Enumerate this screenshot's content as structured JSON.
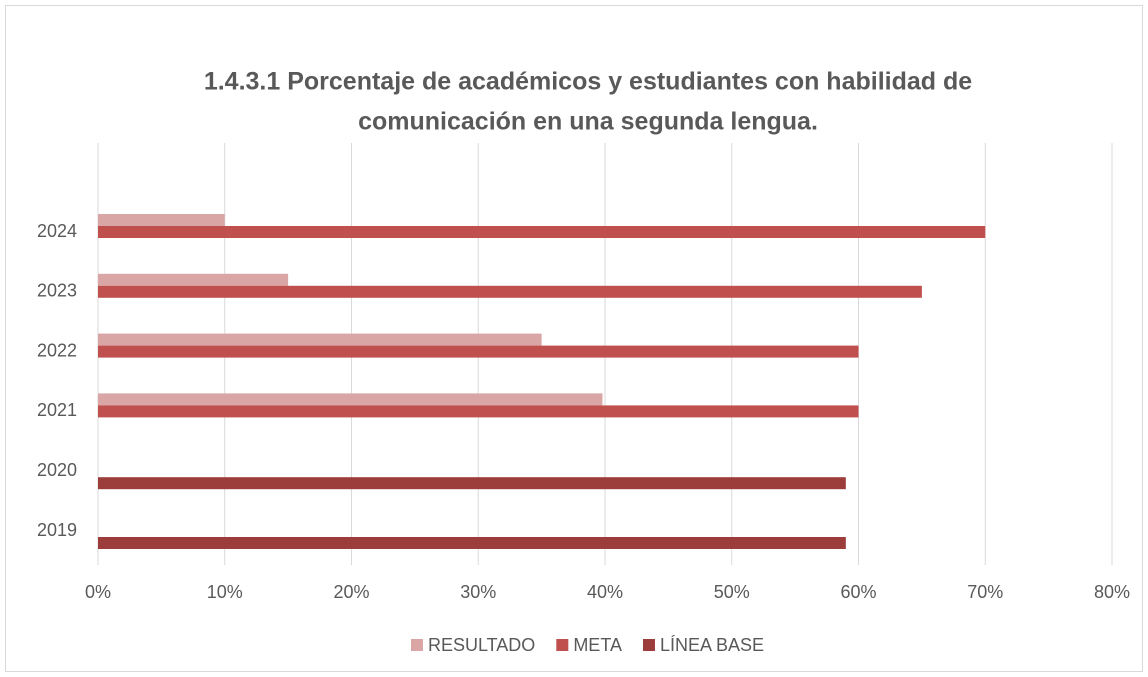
{
  "chart_data": {
    "type": "hbar",
    "title": "1.4.3.1 Porcentaje de académicos y estudiantes con habilidad de comunicación en una segunda lengua.",
    "title_lines": [
      "1.4.3.1 Porcentaje de académicos y estudiantes con habilidad de",
      "comunicación en una segunda lengua."
    ],
    "categories": [
      "2019",
      "2020",
      "2021",
      "2022",
      "2023",
      "2024"
    ],
    "series": [
      {
        "name": "RESULTADO",
        "color": "#d9a5a5",
        "values": [
          null,
          null,
          39.8,
          35,
          15,
          10
        ]
      },
      {
        "name": "META",
        "color": "#c0504d",
        "values": [
          null,
          null,
          60,
          60,
          65,
          70
        ]
      },
      {
        "name": "LÍNEA BASE",
        "color": "#9c3d3b",
        "values": [
          59,
          59,
          null,
          null,
          null,
          null
        ]
      }
    ],
    "xlim": [
      0,
      80
    ],
    "xticks": [
      {
        "value": 0,
        "label": "0%"
      },
      {
        "value": 10,
        "label": "10%"
      },
      {
        "value": 20,
        "label": "20%"
      },
      {
        "value": 30,
        "label": "30%"
      },
      {
        "value": 40,
        "label": "40%"
      },
      {
        "value": 50,
        "label": "50%"
      },
      {
        "value": 60,
        "label": "60%"
      },
      {
        "value": 70,
        "label": "70%"
      },
      {
        "value": 80,
        "label": "80%"
      }
    ],
    "grid": true,
    "legend": "bottom"
  }
}
